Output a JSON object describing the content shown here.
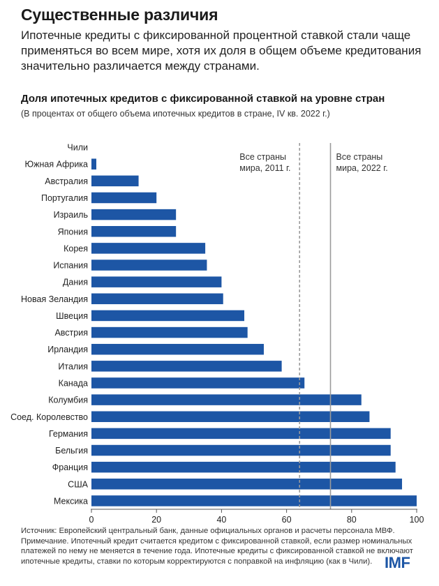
{
  "header": {
    "title": "Существенные различия",
    "lead": "Ипотечные кредиты с фиксированной процентной ставкой стали чаще применяться во всем мире, хотя их доля в общем объеме кредитования значительно различается между странами."
  },
  "chart_data": {
    "type": "bar",
    "orientation": "horizontal",
    "title": "Доля ипотечных кредитов с фиксированной ставкой на уровне стран",
    "subtitle": "(В процентах от общего объема ипотечных кредитов в стране, IV кв. 2022 г.)",
    "categories": [
      "Чили",
      "Южная Африка",
      "Австралия",
      "Португалия",
      "Израиль",
      "Япония",
      "Корея",
      "Испания",
      "Дания",
      "Новая Зеландия",
      "Швеция",
      "Австрия",
      "Ирландия",
      "Италия",
      "Канада",
      "Колумбия",
      "Соед. Королевство",
      "Германия",
      "Бельгия",
      "Франция",
      "США",
      "Мексика"
    ],
    "values": [
      0,
      1.5,
      14.5,
      20,
      26,
      26,
      35,
      35.5,
      40,
      40.5,
      47,
      48,
      53,
      58.5,
      65.5,
      83,
      85.5,
      92,
      92,
      93.5,
      95.5,
      100
    ],
    "xlim": [
      0,
      100
    ],
    "xticks": [
      0,
      20,
      40,
      60,
      80,
      100
    ],
    "bar_color": "#1d56a5",
    "grid": false,
    "reference_lines": [
      {
        "value": 64,
        "style": "dashed",
        "label_line1": "Все страны",
        "label_line2": "мира, 2011 г."
      },
      {
        "value": 73.5,
        "style": "solid",
        "label_line1": "Все страны",
        "label_line2": "мира, 2022 г."
      }
    ]
  },
  "footnote": {
    "source": "Источник: Европейский центральный банк, данные официальных органов и расчеты персонала МВФ.",
    "note": "Примечание. Ипотечный кредит считается кредитом с фиксированной ставкой, если размер номинальных платежей по нему не меняется в течение года. Ипотечные кредиты с фиксированной ставкой не включают ипотечные кредиты, ставки по которым корректируются с поправкой на инфляцию (как в Чили)."
  },
  "logo": "IMF"
}
